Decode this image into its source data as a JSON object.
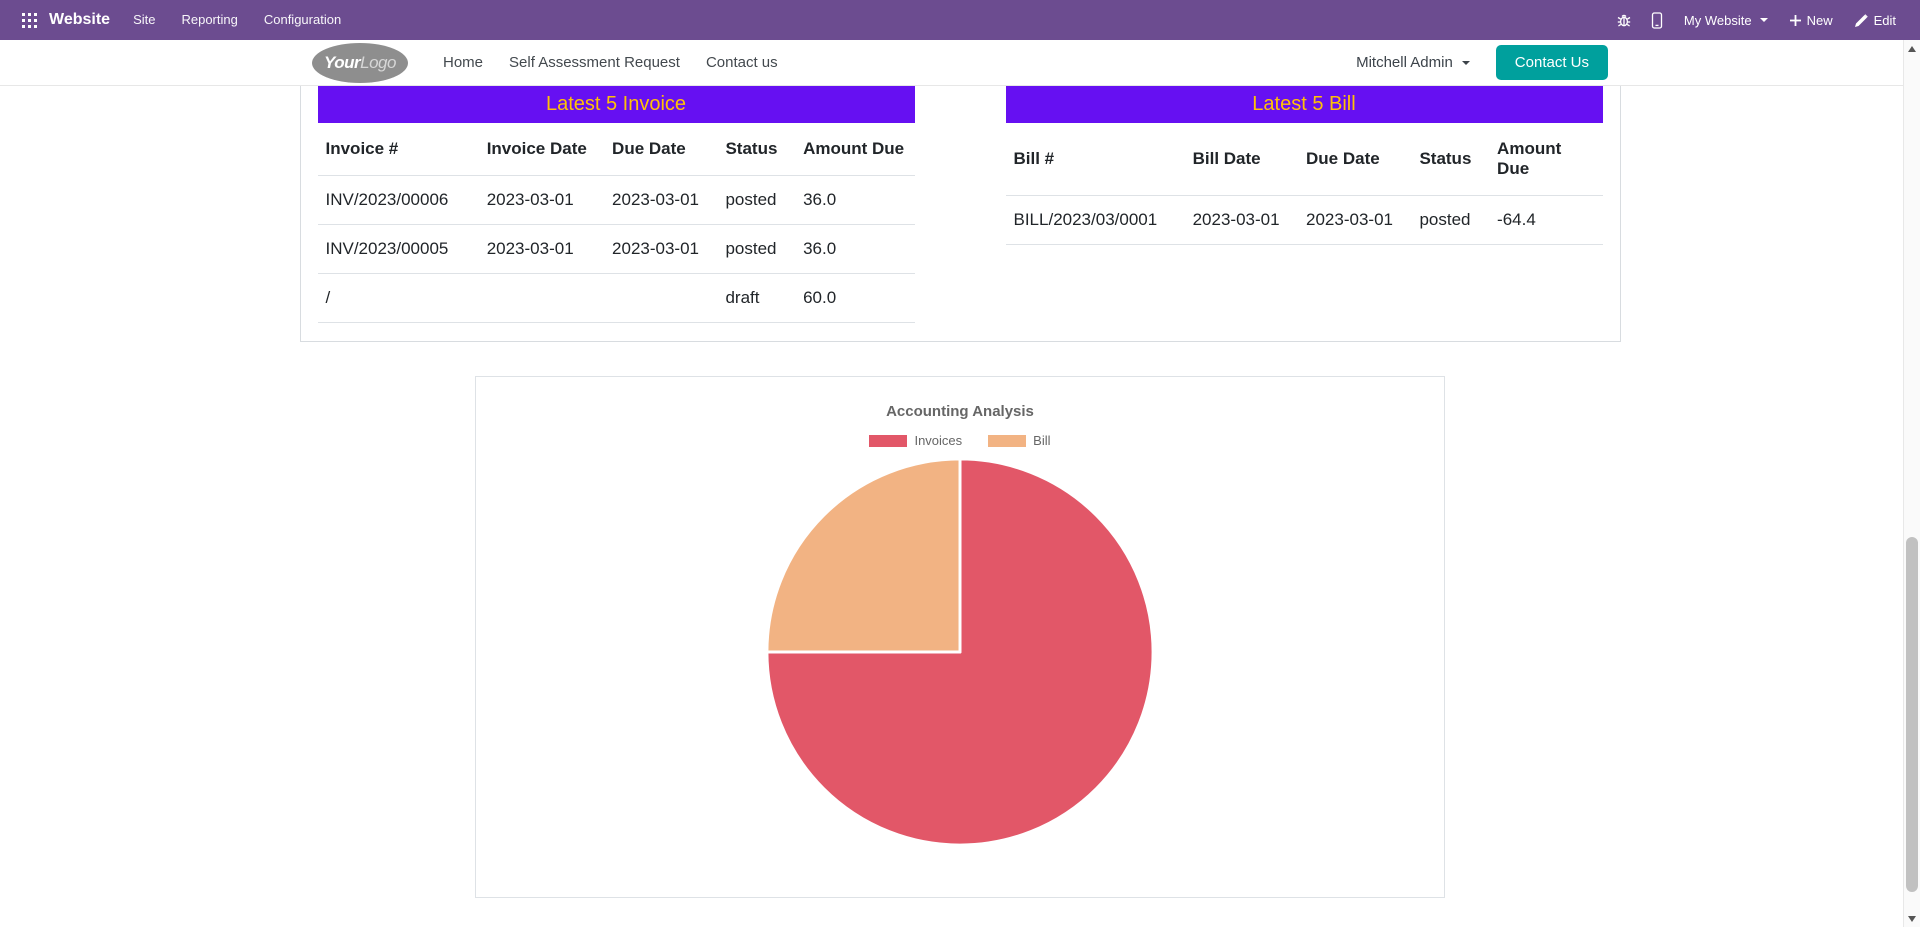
{
  "theme": {
    "topbar_bg": "#6c4c90",
    "table_header_bg": "#6610f2",
    "table_header_text": "#ffc107",
    "primary_btn": "#00a09d"
  },
  "icons": {
    "apps": "grid-3x3",
    "debug": "bug",
    "mobile": "smartphone",
    "new": "plus",
    "edit": "pencil",
    "dropdown": "chevron-down"
  },
  "topbar": {
    "app_name": "Website",
    "menus": [
      {
        "label": "Site"
      },
      {
        "label": "Reporting"
      },
      {
        "label": "Configuration"
      }
    ],
    "website_switcher": "My Website",
    "new_label": "New",
    "edit_label": "Edit"
  },
  "site_header": {
    "logo_part1": "Your",
    "logo_part2": "Logo",
    "nav": [
      {
        "label": "Home"
      },
      {
        "label": "Self Assessment Request"
      },
      {
        "label": "Contact us"
      }
    ],
    "user_menu": "Mitchell Admin",
    "contact_button": "Contact Us"
  },
  "invoice_table": {
    "title": "Latest 5 Invoice",
    "columns": [
      "Invoice #",
      "Invoice Date",
      "Due Date",
      "Status",
      "Amount Due"
    ],
    "rows": [
      [
        "INV/2023/00006",
        "2023-03-01",
        "2023-03-01",
        "posted",
        "36.0"
      ],
      [
        "INV/2023/00005",
        "2023-03-01",
        "2023-03-01",
        "posted",
        "36.0"
      ],
      [
        "/",
        "",
        "",
        "draft",
        "60.0"
      ]
    ]
  },
  "bill_table": {
    "title": "Latest 5 Bill",
    "columns": [
      "Bill #",
      "Bill Date",
      "Due Date",
      "Status",
      "Amount Due"
    ],
    "rows": [
      [
        "BILL/2023/03/0001",
        "2023-03-01",
        "2023-03-01",
        "posted",
        "-64.4"
      ]
    ]
  },
  "chart_data": {
    "type": "pie",
    "title": "Accounting Analysis",
    "labels": [
      "Invoices",
      "Bill"
    ],
    "values": [
      75,
      25
    ],
    "unit": "percent (estimated from slice angles)",
    "colors": [
      "#e25768",
      "#f2b383"
    ],
    "legend_position": "top",
    "slice_border_color": "#ffffff"
  }
}
